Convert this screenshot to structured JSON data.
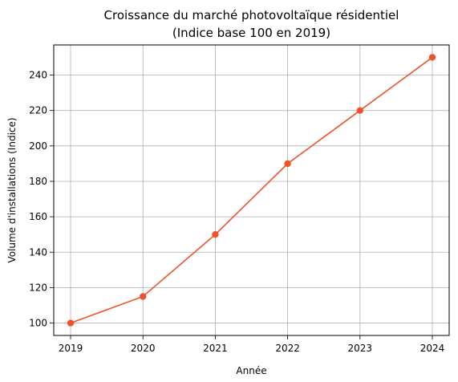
{
  "chart_data": {
    "type": "line",
    "title": [
      "Croissance du marché photovoltaïque résidentiel",
      "(Indice base 100 en 2019)"
    ],
    "xlabel": "Année",
    "ylabel": "Volume d'installations (Indice)",
    "categories": [
      "2019",
      "2020",
      "2021",
      "2022",
      "2023",
      "2024"
    ],
    "series": [
      {
        "values": [
          100,
          115,
          150,
          190,
          220,
          250
        ]
      }
    ],
    "yticks": [
      "100",
      "120",
      "140",
      "160",
      "180",
      "200",
      "220",
      "240"
    ],
    "ylim": [
      93,
      257
    ],
    "grid": true,
    "colors": {
      "line": "#f0522a",
      "grid": "#b0b0b0",
      "axis": "#000000"
    }
  }
}
